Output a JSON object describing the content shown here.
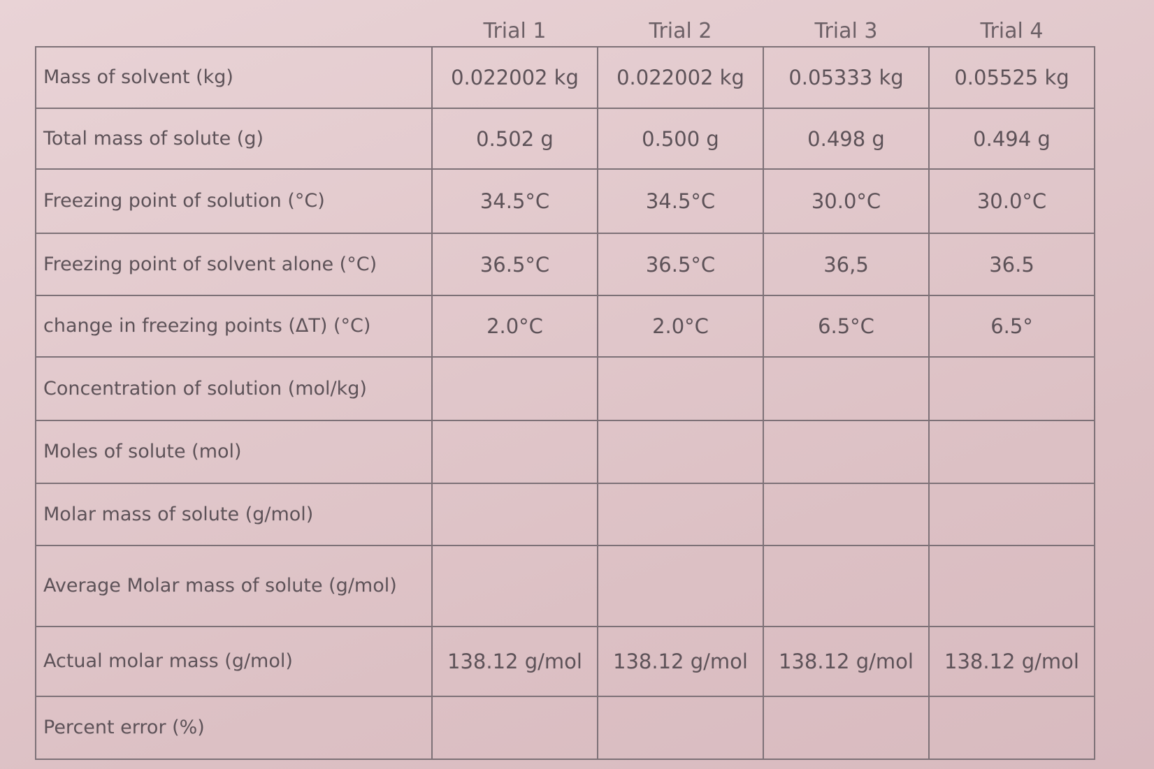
{
  "table": {
    "header": [
      "Trial 1",
      "Trial 2",
      "Trial 3",
      "Trial 4"
    ],
    "rows": [
      {
        "label": "Mass of solvent (kg)",
        "cells": [
          "0.022002 kg",
          "0.022002 kg",
          "0.05333 kg",
          "0.05525 kg"
        ]
      },
      {
        "label": "Total mass of solute (g)",
        "cells": [
          "0.502 g",
          "0.500 g",
          "0.498 g",
          "0.494 g"
        ]
      },
      {
        "label": "Freezing point of solution (°C)",
        "cells": [
          "34.5°C",
          "34.5°C",
          "30.0°C",
          "30.0°C"
        ]
      },
      {
        "label": "Freezing point of solvent alone (°C)",
        "cells": [
          "36.5°C",
          "36.5°C",
          "36,5",
          "36.5"
        ]
      },
      {
        "label": "change in freezing points (ΔT) (°C)",
        "cells": [
          "2.0°C",
          "2.0°C",
          "6.5°C",
          "6.5°"
        ]
      },
      {
        "label": "Concentration of solution (mol/kg)"
      },
      {
        "label": "Moles of solute (mol)"
      },
      {
        "label": "Molar mass of solute (g/mol)"
      },
      {
        "label": "Average Molar mass of solute (g/mol)"
      },
      {
        "label": "Actual molar mass (g/mol)",
        "cells": [
          "138.12 g/mol",
          "138.12 g/mol",
          "138.12 g/mol",
          "138.12 g/mol"
        ]
      },
      {
        "label": "Percent error (%)"
      }
    ]
  }
}
